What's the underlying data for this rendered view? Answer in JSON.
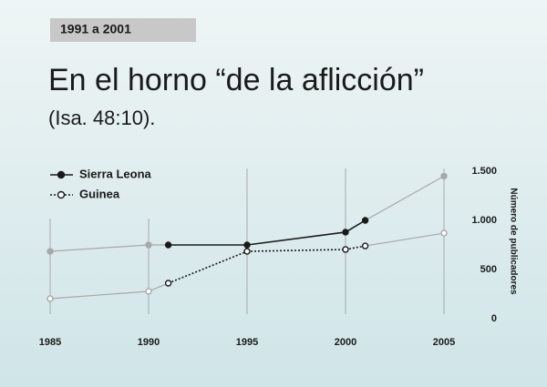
{
  "tag": "1991 a 2001",
  "chart_data": {
    "type": "line",
    "title": "En el horno “de la aflicción”",
    "subtitle": "(Isa. 48:10).",
    "y_label": "Número de publicadores",
    "x": [
      1985,
      1990,
      1991,
      1995,
      2000,
      2001,
      2005
    ],
    "highlight": [
      1991,
      2001
    ],
    "context_color": "#a8a8a8",
    "series": [
      {
        "name": "Sierra Leona",
        "color": "#1a1a1a",
        "marker": "filled",
        "dashed": false,
        "values": [
          685,
          750,
          750,
          750,
          880,
          1000,
          1450
        ]
      },
      {
        "name": "Guinea",
        "color": "#1a1a1a",
        "marker": "open",
        "dashed": true,
        "values": [
          204,
          278,
          361,
          685,
          704,
          740,
          870
        ]
      }
    ],
    "xlim": [
      1985,
      2005
    ],
    "xticks": [
      1985,
      1990,
      1995,
      2000,
      2005
    ],
    "ylim": [
      0,
      1500
    ],
    "yticks": [
      0,
      500,
      {
        "value": 1000,
        "label": "1.000"
      },
      {
        "value": 1500,
        "label": "1.500"
      }
    ],
    "grid": "x"
  }
}
